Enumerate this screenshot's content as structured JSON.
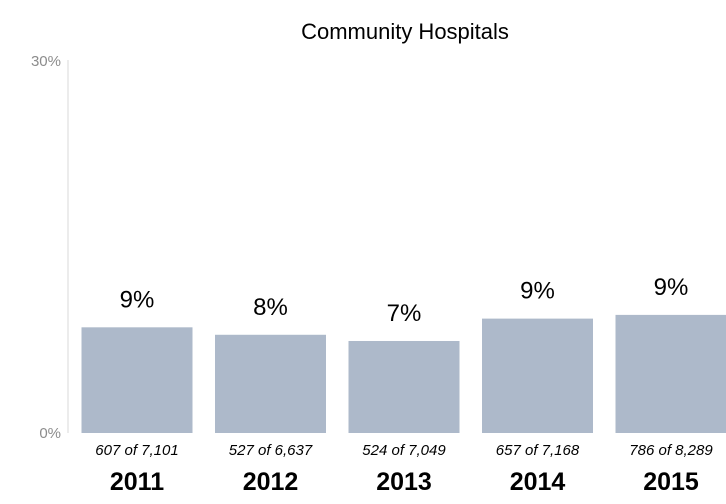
{
  "chart_data": {
    "type": "bar",
    "title": "Community Hospitals",
    "categories": [
      "2011",
      "2012",
      "2013",
      "2014",
      "2015"
    ],
    "values": [
      8.5,
      7.9,
      7.4,
      9.2,
      9.5
    ],
    "data_labels": [
      "9%",
      "8%",
      "7%",
      "9%",
      "9%"
    ],
    "counts": [
      "607 of 7,101",
      "527 of 6,637",
      "524 of 7,049",
      "657 of 7,168",
      "786 of 8,289"
    ],
    "ylim": [
      0,
      30
    ],
    "y_ticks": [
      "0%",
      "30%"
    ],
    "bar_color": "#adb9ca",
    "axis_color": "#d9d9d9",
    "grid": false,
    "legend": "none"
  }
}
